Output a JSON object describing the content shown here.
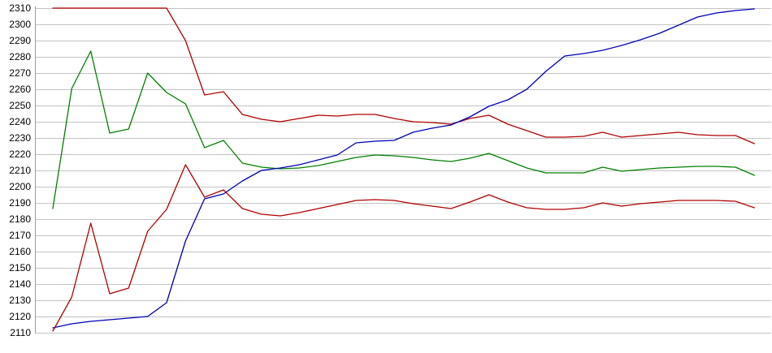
{
  "chart_data": {
    "type": "line",
    "title": "",
    "legend_position": "none",
    "grid": "horizontal-only",
    "background_color": "#ffffff",
    "grid_color": "#c3c3c3",
    "axis_color": "#9a9a9a",
    "y_axis": {
      "min": 2110,
      "max": 2310,
      "tick_step": 10,
      "tick_labels": [
        "2310",
        "2300",
        "2290",
        "2280",
        "2270",
        "2260",
        "2250",
        "2240",
        "2230",
        "2220",
        "2210",
        "2200",
        "2190",
        "2180",
        "2170",
        "2160",
        "2150",
        "2140",
        "2130",
        "2120",
        "2110"
      ]
    },
    "x_axis": {
      "tick_labels": [],
      "labels_visible": false,
      "point_count": 38
    },
    "series": [
      {
        "name": "upper-red-band",
        "color": "#b00000",
        "values": [
          2310,
          2310,
          2310,
          2310,
          2310,
          2310,
          2310,
          2290,
          2256.5,
          2258.5,
          2244.5,
          2241.5,
          2240,
          2242,
          2244,
          2243.5,
          2244.5,
          2244.5,
          2242,
          2240,
          2239.5,
          2238.5,
          2242,
          2244,
          2238.5,
          2234.5,
          2230.5,
          2230.5,
          2231,
          2233.5,
          2230.5,
          2231.5,
          2232.5,
          2233.5,
          2232,
          2231.5,
          2231.5,
          2226.5
        ]
      },
      {
        "name": "green-line",
        "color": "#008000",
        "values": [
          2186.5,
          2260.5,
          2283.5,
          2233,
          2235.5,
          2270,
          2258,
          2251,
          2224,
          2228.5,
          2214.5,
          2212,
          2211,
          2211.5,
          2213,
          2215.5,
          2218,
          2219.5,
          2219,
          2218,
          2216.5,
          2215.5,
          2217.5,
          2220.5,
          2216,
          2211.5,
          2208.5,
          2208.5,
          2208.5,
          2212,
          2209.5,
          2210.5,
          2211.5,
          2212,
          2212.5,
          2212.5,
          2212,
          2207
        ]
      },
      {
        "name": "blue-line",
        "color": "#0000b4",
        "values": [
          2113,
          2115.5,
          2117,
          2118,
          2119,
          2120,
          2128.5,
          2166.5,
          2192.5,
          2195.5,
          2203.5,
          2210,
          2211.5,
          2213.5,
          2216.5,
          2219.5,
          2227,
          2228,
          2228.5,
          2233.5,
          2236,
          2238,
          2243,
          2249.5,
          2253.5,
          2260,
          2271,
          2280.5,
          2282,
          2284,
          2287,
          2290.5,
          2294.5,
          2299.5,
          2304.5,
          2307,
          2308.5,
          2309.5
        ]
      },
      {
        "name": "lower-red-band",
        "color": "#b00000",
        "values": [
          2111,
          2132,
          2177.5,
          2134,
          2137.5,
          2172.5,
          2186,
          2213.5,
          2193.5,
          2198,
          2186.5,
          2183,
          2182,
          2184,
          2186.5,
          2189,
          2191.5,
          2192,
          2191.5,
          2189.5,
          2188,
          2186.5,
          2190.5,
          2195,
          2190.5,
          2187,
          2186,
          2186,
          2187,
          2190,
          2188,
          2189.5,
          2190.5,
          2191.5,
          2191.5,
          2191.5,
          2191,
          2187
        ]
      }
    ]
  }
}
